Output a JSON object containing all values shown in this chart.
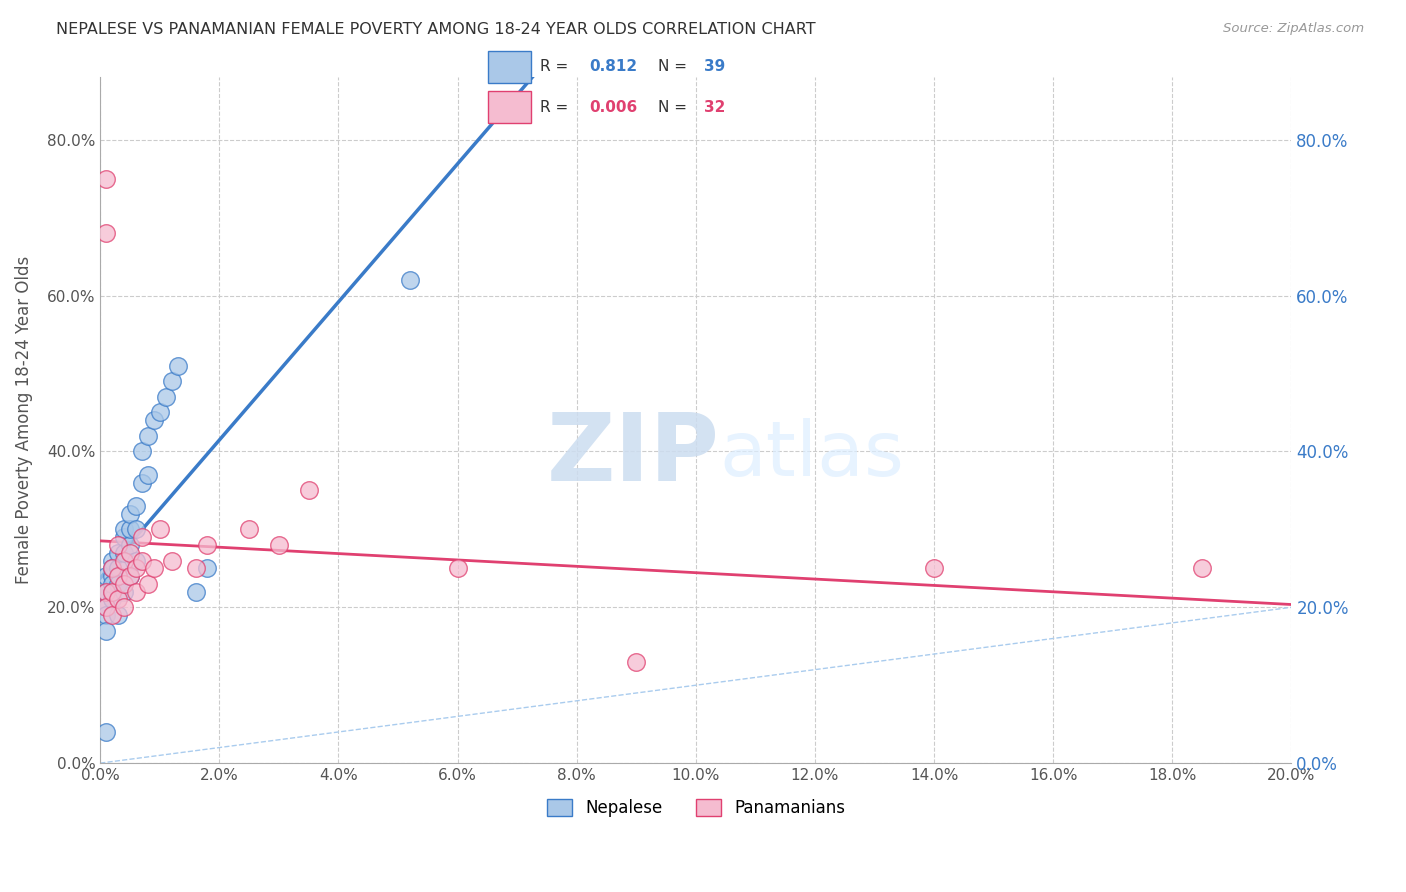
{
  "title": "NEPALESE VS PANAMANIAN FEMALE POVERTY AMONG 18-24 YEAR OLDS CORRELATION CHART",
  "source": "Source: ZipAtlas.com",
  "ylabel": "Female Poverty Among 18-24 Year Olds",
  "xlim": [
    0.0,
    0.2
  ],
  "ylim": [
    0.0,
    0.88
  ],
  "xticks": [
    0.0,
    0.02,
    0.04,
    0.06,
    0.08,
    0.1,
    0.12,
    0.14,
    0.16,
    0.18,
    0.2
  ],
  "yticks_left": [
    0.0,
    0.2,
    0.4,
    0.6,
    0.8
  ],
  "yticks_right": [
    0.0,
    0.2,
    0.4,
    0.6,
    0.8
  ],
  "nepalese_R": 0.812,
  "nepalese_N": 39,
  "panamanian_R": 0.006,
  "panamanian_N": 32,
  "nepalese_color": "#aac8e8",
  "panamanian_color": "#f5bcd0",
  "nepalese_line_color": "#3a7bc8",
  "panamanian_line_color": "#e04070",
  "nepalese_x": [
    0.001,
    0.001,
    0.001,
    0.001,
    0.001,
    0.002,
    0.002,
    0.002,
    0.002,
    0.002,
    0.002,
    0.003,
    0.003,
    0.003,
    0.003,
    0.004,
    0.004,
    0.004,
    0.004,
    0.005,
    0.005,
    0.005,
    0.005,
    0.006,
    0.006,
    0.006,
    0.007,
    0.007,
    0.008,
    0.008,
    0.009,
    0.01,
    0.011,
    0.012,
    0.013,
    0.016,
    0.018,
    0.052,
    0.001
  ],
  "nepalese_y": [
    0.2,
    0.22,
    0.24,
    0.19,
    0.17,
    0.22,
    0.24,
    0.26,
    0.21,
    0.23,
    0.25,
    0.25,
    0.27,
    0.23,
    0.19,
    0.27,
    0.29,
    0.22,
    0.3,
    0.28,
    0.3,
    0.32,
    0.24,
    0.3,
    0.33,
    0.26,
    0.36,
    0.4,
    0.37,
    0.42,
    0.44,
    0.45,
    0.47,
    0.49,
    0.51,
    0.22,
    0.25,
    0.62,
    0.04
  ],
  "panamanian_x": [
    0.001,
    0.001,
    0.001,
    0.001,
    0.002,
    0.002,
    0.002,
    0.003,
    0.003,
    0.003,
    0.004,
    0.004,
    0.004,
    0.005,
    0.005,
    0.006,
    0.006,
    0.007,
    0.007,
    0.008,
    0.009,
    0.01,
    0.012,
    0.016,
    0.018,
    0.025,
    0.03,
    0.035,
    0.06,
    0.09,
    0.14,
    0.185
  ],
  "panamanian_y": [
    0.75,
    0.68,
    0.22,
    0.2,
    0.25,
    0.22,
    0.19,
    0.28,
    0.24,
    0.21,
    0.26,
    0.23,
    0.2,
    0.27,
    0.24,
    0.25,
    0.22,
    0.29,
    0.26,
    0.23,
    0.25,
    0.3,
    0.26,
    0.25,
    0.28,
    0.3,
    0.28,
    0.35,
    0.25,
    0.13,
    0.25,
    0.25
  ],
  "watermark_zip": "ZIP",
  "watermark_atlas": "atlas",
  "background_color": "#ffffff",
  "grid_color": "#cccccc",
  "legend_nepalese_label": "Nepalese",
  "legend_panamanian_label": "Panamanians"
}
